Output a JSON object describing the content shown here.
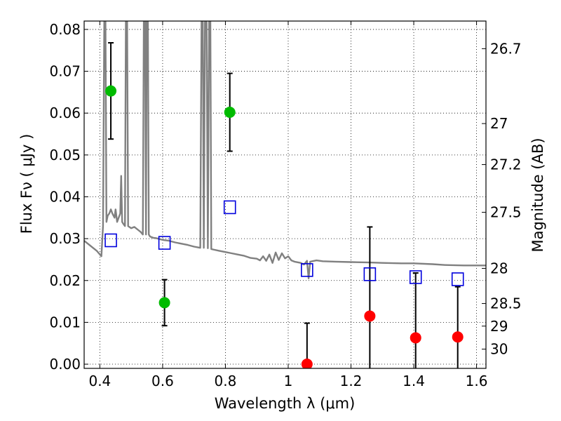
{
  "chart_data": {
    "type": "scatter",
    "xlabel": "Wavelength  λ (μm)",
    "ylabel": "Flux  Fν  ( μJy )",
    "y2label": "Magnitude (AB)",
    "xlim": [
      0.35,
      1.63
    ],
    "ylim": [
      -0.001,
      0.082
    ],
    "x_ticks": [
      0.4,
      0.6,
      0.8,
      1.0,
      1.2,
      1.4,
      1.6
    ],
    "x_tick_labels": [
      "0.4",
      "0.6",
      "0.8",
      "1",
      "1.2",
      "1.4",
      "1.6"
    ],
    "y_ticks": [
      0.0,
      0.01,
      0.02,
      0.03,
      0.04,
      0.05,
      0.06,
      0.07,
      0.08
    ],
    "y_tick_labels": [
      "0.00",
      "0.01",
      "0.02",
      "0.03",
      "0.04",
      "0.05",
      "0.06",
      "0.07",
      "0.08"
    ],
    "y2_ticks": [
      {
        "flux": 0.0754,
        "label": "26.7"
      },
      {
        "flux": 0.0575,
        "label": "27"
      },
      {
        "flux": 0.0477,
        "label": "27.2"
      },
      {
        "flux": 0.0363,
        "label": "27.5"
      },
      {
        "flux": 0.0229,
        "label": "28"
      },
      {
        "flux": 0.0145,
        "label": "28.5"
      },
      {
        "flux": 0.0091,
        "label": "29"
      },
      {
        "flux": 0.0036,
        "label": "30"
      }
    ],
    "grid": true,
    "series": [
      {
        "kind": "points",
        "color": "#00bb00",
        "points": [
          {
            "x": 0.435,
            "y": 0.0653,
            "err": 0.0115
          },
          {
            "x": 0.606,
            "y": 0.0147,
            "err": 0.0055
          },
          {
            "x": 0.814,
            "y": 0.0602,
            "err": 0.0093
          }
        ]
      },
      {
        "kind": "points",
        "color": "#ff0000",
        "points": [
          {
            "x": 1.06,
            "y": 0.0,
            "err": 0.0098
          },
          {
            "x": 1.26,
            "y": 0.0115,
            "err": 0.0213
          },
          {
            "x": 1.406,
            "y": 0.0063,
            "err": 0.0155
          },
          {
            "x": 1.54,
            "y": 0.0065,
            "err": 0.012
          }
        ]
      },
      {
        "kind": "open-squares",
        "color": "#0000dd",
        "points": [
          {
            "x": 0.435,
            "y": 0.0296
          },
          {
            "x": 0.606,
            "y": 0.029
          },
          {
            "x": 0.814,
            "y": 0.0375
          },
          {
            "x": 1.06,
            "y": 0.0225
          },
          {
            "x": 1.26,
            "y": 0.0215
          },
          {
            "x": 1.406,
            "y": 0.0208
          },
          {
            "x": 1.54,
            "y": 0.0203
          }
        ]
      },
      {
        "kind": "model-line",
        "color": "#808080",
        "points": [
          [
            0.35,
            0.0295
          ],
          [
            0.37,
            0.0283
          ],
          [
            0.39,
            0.0271
          ],
          [
            0.405,
            0.0258
          ],
          [
            0.41,
            0.033
          ],
          [
            0.414,
            0.082
          ],
          [
            0.418,
            0.082
          ],
          [
            0.421,
            0.034
          ],
          [
            0.425,
            0.0355
          ],
          [
            0.43,
            0.036
          ],
          [
            0.435,
            0.037
          ],
          [
            0.44,
            0.036
          ],
          [
            0.447,
            0.035
          ],
          [
            0.45,
            0.037
          ],
          [
            0.455,
            0.034
          ],
          [
            0.46,
            0.035
          ],
          [
            0.465,
            0.036
          ],
          [
            0.468,
            0.045
          ],
          [
            0.471,
            0.034
          ],
          [
            0.475,
            0.0335
          ],
          [
            0.48,
            0.033
          ],
          [
            0.483,
            0.082
          ],
          [
            0.487,
            0.082
          ],
          [
            0.49,
            0.033
          ],
          [
            0.5,
            0.0325
          ],
          [
            0.51,
            0.0328
          ],
          [
            0.52,
            0.0322
          ],
          [
            0.53,
            0.0316
          ],
          [
            0.537,
            0.031
          ],
          [
            0.54,
            0.082
          ],
          [
            0.544,
            0.082
          ],
          [
            0.547,
            0.031
          ],
          [
            0.549,
            0.082
          ],
          [
            0.553,
            0.082
          ],
          [
            0.556,
            0.031
          ],
          [
            0.56,
            0.0305
          ],
          [
            0.57,
            0.0302
          ],
          [
            0.58,
            0.0301
          ],
          [
            0.59,
            0.0299
          ],
          [
            0.6,
            0.0297
          ],
          [
            0.62,
            0.0295
          ],
          [
            0.64,
            0.0291
          ],
          [
            0.66,
            0.0288
          ],
          [
            0.68,
            0.0285
          ],
          [
            0.7,
            0.0281
          ],
          [
            0.72,
            0.0278
          ],
          [
            0.724,
            0.082
          ],
          [
            0.728,
            0.082
          ],
          [
            0.731,
            0.0278
          ],
          [
            0.735,
            0.082
          ],
          [
            0.74,
            0.082
          ],
          [
            0.744,
            0.0277
          ],
          [
            0.748,
            0.082
          ],
          [
            0.752,
            0.082
          ],
          [
            0.755,
            0.0275
          ],
          [
            0.78,
            0.0271
          ],
          [
            0.8,
            0.0268
          ],
          [
            0.82,
            0.0265
          ],
          [
            0.84,
            0.0262
          ],
          [
            0.86,
            0.0259
          ],
          [
            0.88,
            0.0254
          ],
          [
            0.9,
            0.0252
          ],
          [
            0.91,
            0.0248
          ],
          [
            0.92,
            0.0258
          ],
          [
            0.93,
            0.0247
          ],
          [
            0.94,
            0.0262
          ],
          [
            0.95,
            0.0242
          ],
          [
            0.96,
            0.0267
          ],
          [
            0.97,
            0.0249
          ],
          [
            0.98,
            0.0265
          ],
          [
            0.99,
            0.0253
          ],
          [
            1.0,
            0.0258
          ],
          [
            1.01,
            0.0248
          ],
          [
            1.02,
            0.0245
          ],
          [
            1.04,
            0.0242
          ],
          [
            1.05,
            0.0238
          ],
          [
            1.06,
            0.0247
          ],
          [
            1.065,
            0.0205
          ],
          [
            1.07,
            0.0245
          ],
          [
            1.09,
            0.0248
          ],
          [
            1.11,
            0.0246
          ],
          [
            1.15,
            0.0245
          ],
          [
            1.2,
            0.0244
          ],
          [
            1.26,
            0.0243
          ],
          [
            1.3,
            0.0242
          ],
          [
            1.36,
            0.0241
          ],
          [
            1.4,
            0.0241
          ],
          [
            1.46,
            0.0239
          ],
          [
            1.5,
            0.0237
          ],
          [
            1.56,
            0.0236
          ],
          [
            1.6,
            0.0236
          ],
          [
            1.63,
            0.0236
          ]
        ]
      }
    ]
  }
}
